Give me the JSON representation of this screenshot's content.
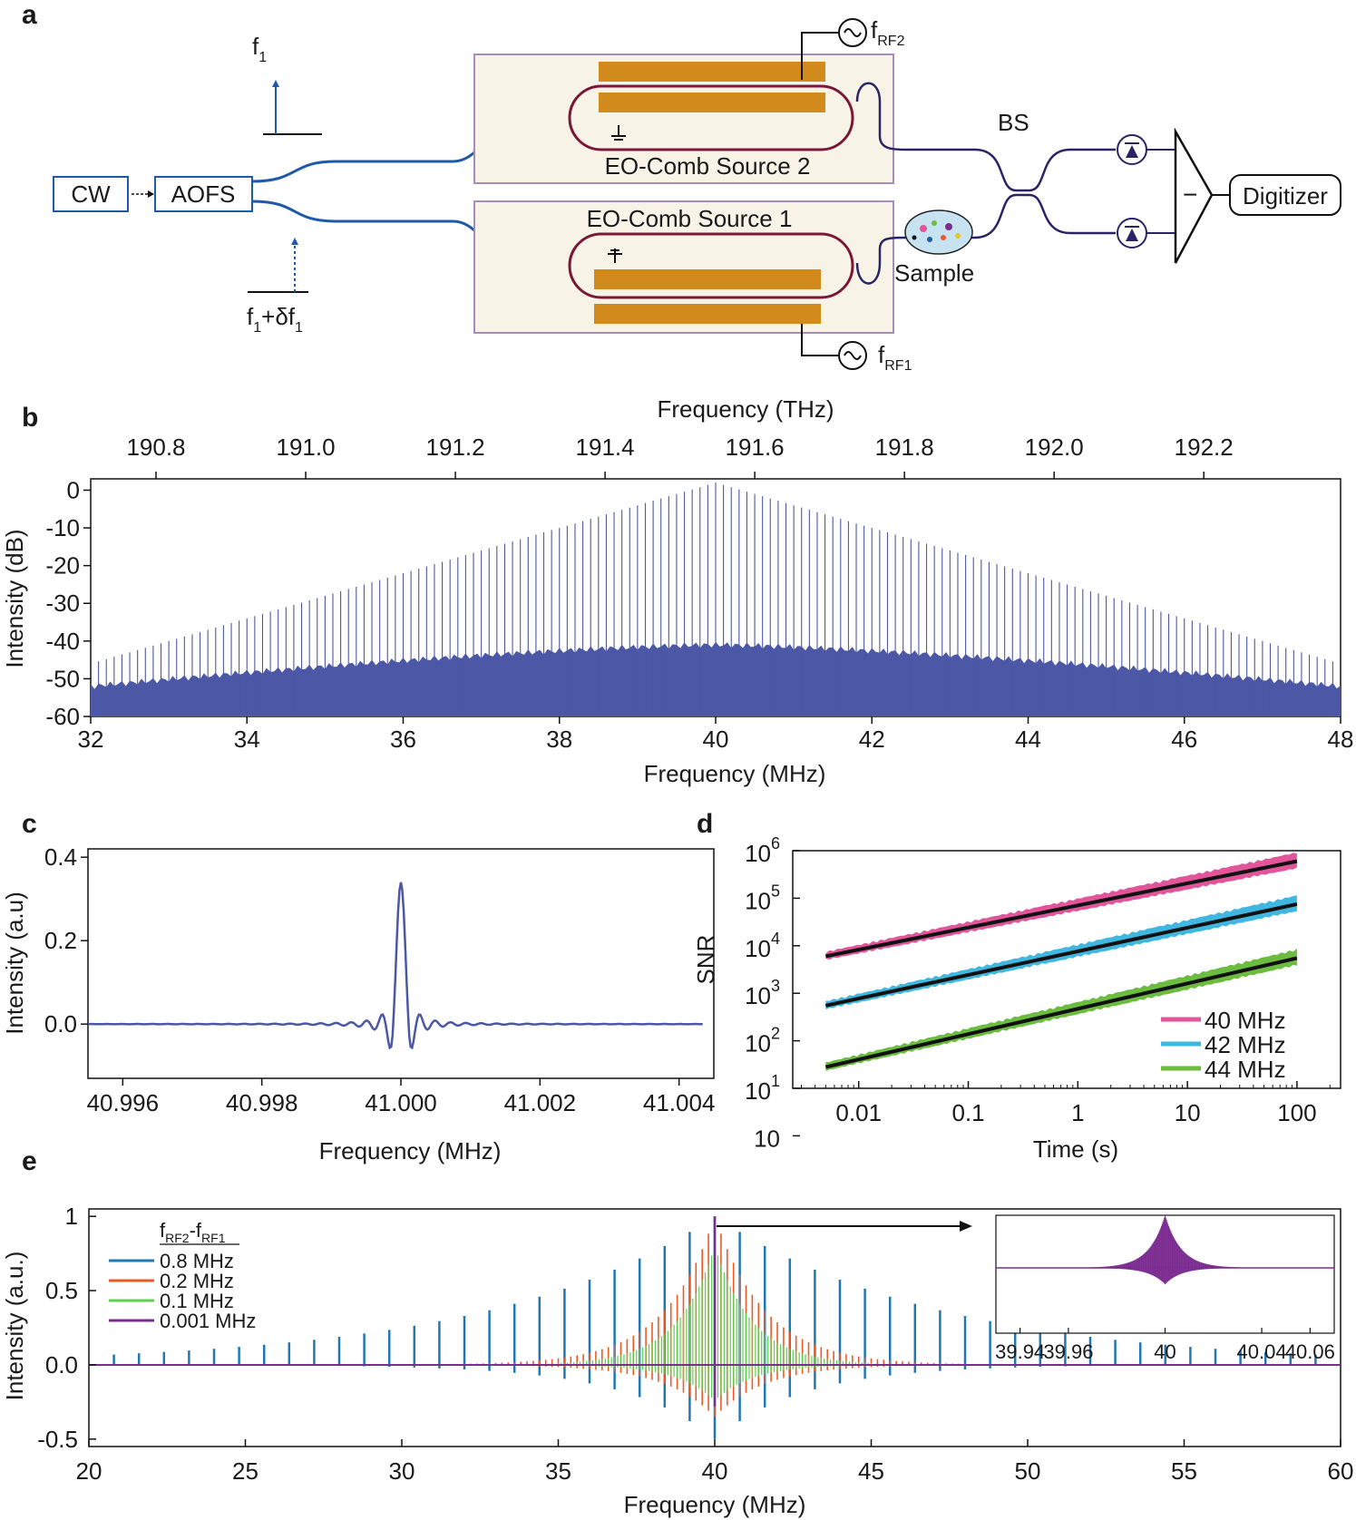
{
  "panels": {
    "a": "a",
    "b": "b",
    "c": "c",
    "d": "d",
    "e": "e"
  },
  "diagram_a": {
    "cw": "CW",
    "aofs": "AOFS",
    "f1": "f",
    "f1_sub": "1",
    "f1_delta_a": "f",
    "f1_delta_sub1": "1",
    "f1_delta_b": "+δf",
    "f1_delta_sub2": "1",
    "source2": "EO-Comb Source 2",
    "source1": "EO-Comb Source 1",
    "rf2": "f",
    "rf2_sub": "RF2",
    "rf1": "f",
    "rf1_sub": "RF1",
    "bs": "BS",
    "sample": "Sample",
    "minus": "−",
    "digitizer": "Digitizer"
  },
  "colors": {
    "blue": "#4c57a6",
    "fiber": "#1f5aa6",
    "dark_fiber": "#2a2466",
    "electrode": "#d18a1b",
    "ring": "#7a1838",
    "box_fill": "#f7f3e6",
    "box_stroke": "#a78bb8",
    "pink": "#e2559b",
    "cyan": "#3fb7e0",
    "green": "#6cbd3f",
    "e_blue": "#1f77b4",
    "e_orange": "#ef5a24",
    "e_green": "#5ccf4f",
    "e_purple": "#7a2d8f"
  },
  "chart_data": [
    {
      "panel": "b",
      "type": "bar",
      "title": "",
      "xlabel": "Frequency (MHz)",
      "x2label": "Frequency (THz)",
      "ylabel": "Intensity (dB)",
      "xlim": [
        32,
        48
      ],
      "ylim": [
        -60,
        3
      ],
      "xticks": [
        "32",
        "34",
        "36",
        "38",
        "40",
        "42",
        "44",
        "46",
        "48"
      ],
      "x2ticks": [
        "190.8",
        "191.0",
        "191.2",
        "191.4",
        "191.6",
        "191.8",
        "192.0",
        "192.2"
      ],
      "yticks": [
        "0",
        "-10",
        "-20",
        "-30",
        "-40",
        "-50",
        "-60"
      ],
      "comb": {
        "center_mhz": 40,
        "spacing_mhz": 0.1,
        "peak_db": 2,
        "edge_db": -46,
        "floor_center_db": -41,
        "floor_edge_db": -52
      }
    },
    {
      "panel": "c",
      "type": "line",
      "title": "",
      "xlabel": "Frequency (MHz)",
      "ylabel": "Intensity (a.u)",
      "xlim": [
        40.9955,
        41.0045
      ],
      "ylim": [
        -0.13,
        0.42
      ],
      "xticks": [
        "40.996",
        "40.998",
        "41.000",
        "41.002",
        "41.004"
      ],
      "yticks": [
        "0.4",
        "0.2",
        "0.0"
      ],
      "series": [
        {
          "peak_x": 41.0,
          "peak_y": 0.34,
          "sidelobe_min": -0.07
        }
      ]
    },
    {
      "panel": "d",
      "type": "scatter",
      "title": "",
      "xlabel": "Time (s)",
      "ylabel": "SNR",
      "xscale": "log",
      "yscale": "log",
      "xlim": [
        0.0025,
        250
      ],
      "ylim": [
        10,
        1000000
      ],
      "xticks": [
        "0.01",
        "0.1",
        "1",
        "10",
        "100"
      ],
      "yticks": [
        {
          "base": "10",
          "exp": "6"
        },
        {
          "base": "10",
          "exp": "5"
        },
        {
          "base": "10",
          "exp": "4"
        },
        {
          "base": "10",
          "exp": "3"
        },
        {
          "base": "10",
          "exp": "2"
        },
        {
          "base": "10",
          "exp": "1"
        },
        {
          "base": "10",
          "exp": ""
        }
      ],
      "series": [
        {
          "name": "40 MHz",
          "x": [
            0.005,
            100
          ],
          "y": [
            6000,
            600000
          ]
        },
        {
          "name": "42 MHz",
          "x": [
            0.005,
            100
          ],
          "y": [
            550,
            75000
          ]
        },
        {
          "name": "44 MHz",
          "x": [
            0.005,
            100
          ],
          "y": [
            28,
            5500
          ]
        }
      ]
    },
    {
      "panel": "e",
      "type": "bar",
      "title": "",
      "xlabel": "Frequency (MHz)",
      "ylabel": "Intensity (a.u.)",
      "xlim": [
        20,
        60
      ],
      "ylim": [
        -0.55,
        1.05
      ],
      "xticks": [
        "20",
        "25",
        "30",
        "35",
        "40",
        "45",
        "50",
        "55",
        "60"
      ],
      "yticks": [
        "1",
        "0.5",
        "0.0",
        "-0.5"
      ],
      "legend_title_a": "f",
      "legend_title_sub1": "RF2",
      "legend_title_b": "-f",
      "legend_title_sub2": "RF1",
      "series": [
        {
          "name": "0.8 MHz",
          "spacing": 0.8,
          "peak": 1.0
        },
        {
          "name": "0.2 MHz",
          "spacing": 0.2,
          "peak": 1.0
        },
        {
          "name": "0.1 MHz",
          "spacing": 0.1,
          "peak": 0.8
        },
        {
          "name": "0.001 MHz",
          "spacing": 0.001,
          "peak": 1.0
        }
      ],
      "inset": {
        "xticks": [
          "39.94",
          "39.96",
          "40",
          "40.04",
          "40.06"
        ],
        "xlim": [
          39.93,
          40.07
        ]
      }
    }
  ]
}
